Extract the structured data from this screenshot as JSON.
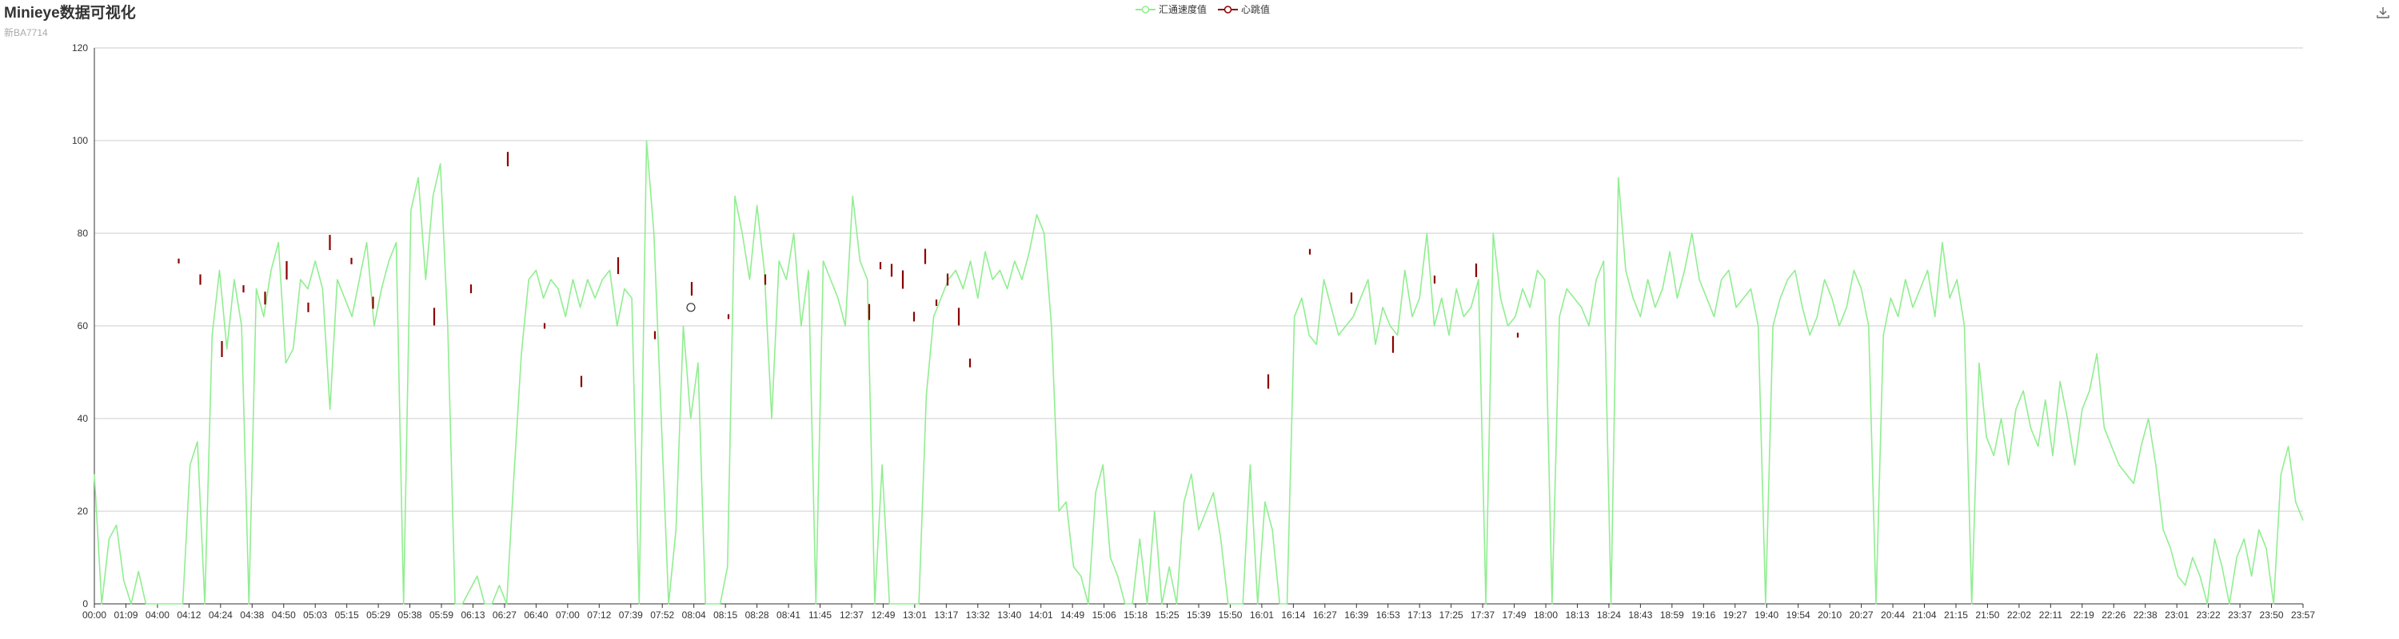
{
  "header": {
    "title": "Minieye数据可视化",
    "subtitle": "新BA7714"
  },
  "legend": [
    {
      "label": "汇通速度值",
      "color": "#90ee90",
      "icon": "line-circle-icon"
    },
    {
      "label": "心跳值",
      "color": "#8b0000",
      "icon": "line-circle-icon"
    }
  ],
  "toolbar": {
    "download_icon": "download-icon"
  },
  "chart_data": {
    "type": "line",
    "title": "Minieye数据可视化",
    "subtitle": "新BA7714",
    "ylim": [
      0,
      120
    ],
    "y_ticks": [
      0,
      20,
      40,
      60,
      80,
      100,
      120
    ],
    "grid": true,
    "legend_position": "top-center",
    "x_tick_labels": [
      "00:00",
      "01:09",
      "04:00",
      "04:12",
      "04:24",
      "04:38",
      "04:50",
      "05:03",
      "05:15",
      "05:29",
      "05:38",
      "05:59",
      "06:13",
      "06:27",
      "06:40",
      "07:00",
      "07:12",
      "07:39",
      "07:52",
      "08:04",
      "08:15",
      "08:28",
      "08:41",
      "11:45",
      "12:37",
      "12:49",
      "13:01",
      "13:17",
      "13:32",
      "13:40",
      "14:01",
      "14:49",
      "15:06",
      "15:18",
      "15:25",
      "15:39",
      "15:50",
      "16:01",
      "16:14",
      "16:27",
      "16:39",
      "16:53",
      "17:13",
      "17:25",
      "17:37",
      "17:49",
      "18:00",
      "18:13",
      "18:24",
      "18:43",
      "18:59",
      "19:16",
      "19:27",
      "19:40",
      "19:54",
      "20:10",
      "20:27",
      "20:44",
      "21:04",
      "21:15",
      "21:50",
      "22:02",
      "22:11",
      "22:19",
      "22:26",
      "22:38",
      "23:01",
      "23:22",
      "23:37",
      "23:50",
      "23:57"
    ],
    "series": [
      {
        "name": "汇通速度值",
        "color": "#90ee90",
        "values": [
          28,
          0,
          14,
          17,
          5,
          0,
          7,
          0,
          0,
          0,
          0,
          0,
          0,
          30,
          35,
          0,
          58,
          72,
          55,
          70,
          60,
          0,
          68,
          62,
          72,
          78,
          52,
          55,
          70,
          68,
          74,
          68,
          42,
          70,
          66,
          62,
          70,
          78,
          60,
          68,
          74,
          78,
          0,
          85,
          92,
          70,
          88,
          95,
          60,
          0,
          0,
          3,
          6,
          0,
          0,
          4,
          0,
          28,
          54,
          70,
          72,
          66,
          70,
          68,
          62,
          70,
          64,
          70,
          66,
          70,
          72,
          60,
          68,
          66,
          0,
          100,
          80,
          40,
          0,
          16,
          60,
          40,
          52,
          0,
          0,
          0,
          8,
          88,
          80,
          70,
          86,
          72,
          40,
          74,
          70,
          80,
          60,
          72,
          0,
          74,
          70,
          66,
          60,
          88,
          74,
          70,
          0,
          30,
          0,
          0,
          0,
          0,
          0,
          45,
          62,
          66,
          70,
          72,
          68,
          74,
          66,
          76,
          70,
          72,
          68,
          74,
          70,
          76,
          84,
          80,
          60,
          20,
          22,
          8,
          6,
          0,
          24,
          30,
          10,
          6,
          0,
          0,
          14,
          0,
          20,
          0,
          8,
          0,
          22,
          28,
          16,
          20,
          24,
          14,
          0,
          0,
          0,
          30,
          0,
          22,
          16,
          0,
          0,
          62,
          66,
          58,
          56,
          70,
          64,
          58,
          60,
          62,
          66,
          70,
          56,
          64,
          60,
          58,
          72,
          62,
          66,
          80,
          60,
          66,
          58,
          68,
          62,
          64,
          70,
          0,
          80,
          66,
          60,
          62,
          68,
          64,
          72,
          70,
          0,
          62,
          68,
          66,
          64,
          60,
          70,
          74,
          0,
          92,
          72,
          66,
          62,
          70,
          64,
          68,
          76,
          66,
          72,
          80,
          70,
          66,
          62,
          70,
          72,
          64,
          66,
          68,
          60,
          0,
          60,
          66,
          70,
          72,
          64,
          58,
          62,
          70,
          66,
          60,
          64,
          72,
          68,
          60,
          0,
          58,
          66,
          62,
          70,
          64,
          68,
          72,
          62,
          78,
          66,
          70,
          60,
          0,
          52,
          36,
          32,
          40,
          30,
          42,
          46,
          38,
          34,
          44,
          32,
          48,
          40,
          30,
          42,
          46,
          54,
          38,
          34,
          30,
          28,
          26,
          34,
          40,
          30,
          16,
          12,
          6,
          4,
          10,
          6,
          0,
          14,
          8,
          0,
          10,
          14,
          6,
          16,
          12,
          0,
          28,
          34,
          22,
          18
        ]
      },
      {
        "name": "心跳值",
        "color": "#8b0000",
        "values": [
          74,
          70,
          55,
          68,
          66,
          72,
          64,
          78,
          74,
          65,
          62,
          68,
          96,
          60,
          48,
          73,
          58,
          68,
          62,
          70,
          63,
          73,
          72,
          70,
          62,
          75,
          65,
          70,
          62,
          52,
          48,
          76,
          66,
          56,
          70,
          72,
          58
        ]
      }
    ]
  }
}
